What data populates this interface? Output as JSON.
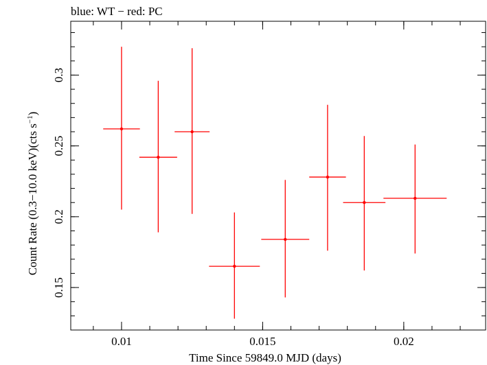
{
  "chart_data": {
    "type": "scatter",
    "title": "blue: WT − red: PC",
    "xlabel": "Time Since 59849.0 MJD (days)",
    "ylabel_parts": {
      "prefix": "Count Rate (0.3−10.0 keV)(cts s",
      "sup": "−1",
      "suffix": ")"
    },
    "xlim": [
      0.0082,
      0.0229
    ],
    "ylim": [
      0.12,
      0.338
    ],
    "x_ticks": [
      {
        "value": 0.01,
        "label": "0.01"
      },
      {
        "value": 0.015,
        "label": "0.015"
      },
      {
        "value": 0.02,
        "label": "0.02"
      }
    ],
    "x_minor_step": 0.001,
    "y_ticks": [
      {
        "value": 0.15,
        "label": "0.15"
      },
      {
        "value": 0.2,
        "label": "0.2"
      },
      {
        "value": 0.25,
        "label": "0.25"
      },
      {
        "value": 0.3,
        "label": "0.3"
      }
    ],
    "y_minor_step": 0.01,
    "series_color": "#ff0000",
    "series": [
      {
        "points": [
          {
            "x": 0.01,
            "xerr": 0.00065,
            "y": 0.262,
            "ylo": 0.205,
            "yhi": 0.32
          },
          {
            "x": 0.0113,
            "xerr": 0.00067,
            "y": 0.242,
            "ylo": 0.189,
            "yhi": 0.296
          },
          {
            "x": 0.0125,
            "xerr": 0.00062,
            "y": 0.26,
            "ylo": 0.202,
            "yhi": 0.319
          },
          {
            "x": 0.014,
            "xerr": 0.0009,
            "y": 0.165,
            "ylo": 0.128,
            "yhi": 0.203
          },
          {
            "x": 0.0158,
            "xerr": 0.00085,
            "y": 0.184,
            "ylo": 0.143,
            "yhi": 0.226
          },
          {
            "x": 0.0173,
            "xerr": 0.00065,
            "y": 0.228,
            "ylo": 0.176,
            "yhi": 0.279
          },
          {
            "x": 0.0186,
            "xerr": 0.00075,
            "y": 0.21,
            "ylo": 0.162,
            "yhi": 0.257
          },
          {
            "x": 0.0204,
            "xerr": 0.00112,
            "y": 0.213,
            "ylo": 0.174,
            "yhi": 0.251
          }
        ]
      }
    ]
  }
}
